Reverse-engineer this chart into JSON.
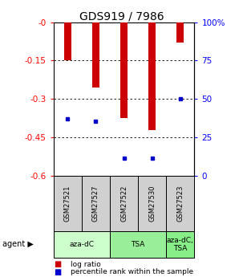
{
  "title": "GDS919 / 7986",
  "samples": [
    "GSM27521",
    "GSM27527",
    "GSM27522",
    "GSM27530",
    "GSM27523"
  ],
  "log_ratios": [
    -0.15,
    -0.255,
    -0.375,
    -0.42,
    -0.08
  ],
  "percentile_ranks": [
    0.37,
    0.355,
    0.115,
    0.115,
    0.5
  ],
  "ylim_left": [
    -0.6,
    0.0
  ],
  "yticks_left": [
    0.0,
    -0.15,
    -0.3,
    -0.45,
    -0.6
  ],
  "yticks_right_vals": [
    100,
    75,
    50,
    25,
    0
  ],
  "yticks_right_pos": [
    1.0,
    0.75,
    0.5,
    0.25,
    0.0
  ],
  "bar_color": "#cc0000",
  "percentile_color": "#0000cc",
  "sample_bg": "#d0d0d0",
  "title_fontsize": 10,
  "tick_fontsize": 7.5,
  "agent_groups": [
    {
      "label": "aza-dC",
      "start": 0,
      "end": 1,
      "color": "#ccffcc"
    },
    {
      "label": "TSA",
      "start": 2,
      "end": 3,
      "color": "#99ee99"
    },
    {
      "label": "aza-dC,\nTSA",
      "start": 4,
      "end": 4,
      "color": "#88ee88"
    }
  ]
}
